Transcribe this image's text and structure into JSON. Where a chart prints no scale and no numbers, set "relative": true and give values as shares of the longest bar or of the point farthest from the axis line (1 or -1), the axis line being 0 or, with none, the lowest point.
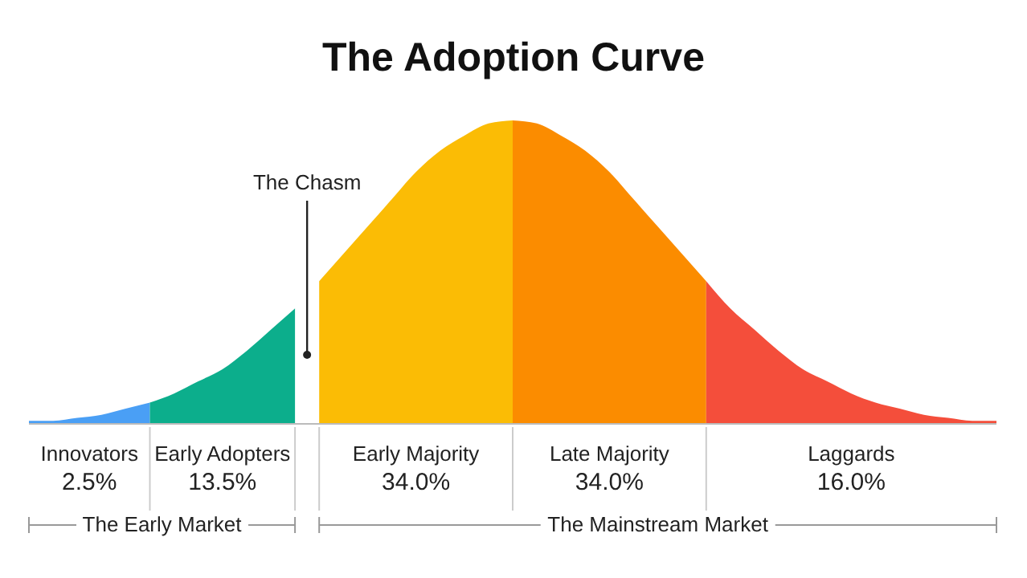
{
  "chart_data": {
    "type": "area",
    "title": "The Adoption Curve",
    "relative": true,
    "tick_labels": false,
    "categories": [
      null,
      null,
      null,
      null,
      null,
      null,
      null,
      null,
      null,
      null,
      null,
      null,
      null,
      null,
      null,
      null,
      null,
      null,
      null,
      null,
      null,
      null,
      null,
      null,
      null,
      null,
      null,
      null,
      null,
      null,
      null,
      null,
      null,
      null,
      null,
      null,
      null,
      null,
      null,
      null,
      null
    ],
    "series": [
      {
        "name": "Innovators",
        "color": "#4a9ff5",
        "values": [
          0.01,
          0.01,
          0.02,
          0.03,
          0.05,
          0.07,
          null,
          null,
          null,
          null,
          null,
          null,
          null,
          null,
          null,
          null,
          null,
          null,
          null,
          null,
          null,
          null,
          null,
          null,
          null,
          null,
          null,
          null,
          null,
          null,
          null,
          null,
          null,
          null,
          null,
          null,
          null,
          null,
          null,
          null,
          null
        ]
      },
      {
        "name": "Early Adopters",
        "color": "#0cae8c",
        "values": [
          null,
          null,
          null,
          null,
          null,
          0.07,
          0.1,
          0.14,
          0.18,
          0.24,
          0.31,
          0.38,
          null,
          null,
          null,
          null,
          null,
          null,
          null,
          null,
          null,
          null,
          null,
          null,
          null,
          null,
          null,
          null,
          null,
          null,
          null,
          null,
          null,
          null,
          null,
          null,
          null,
          null,
          null,
          null,
          null
        ]
      },
      {
        "name": "Early Majority",
        "color": "#fbbc05",
        "values": [
          null,
          null,
          null,
          null,
          null,
          null,
          null,
          null,
          null,
          null,
          null,
          null,
          0.47,
          0.56,
          0.65,
          0.74,
          0.83,
          0.9,
          0.95,
          0.99,
          1,
          null,
          null,
          null,
          null,
          null,
          null,
          null,
          null,
          null,
          null,
          null,
          null,
          null,
          null,
          null,
          null,
          null,
          null,
          null,
          null
        ]
      },
      {
        "name": "Late Majority",
        "color": "#fb8c00",
        "values": [
          null,
          null,
          null,
          null,
          null,
          null,
          null,
          null,
          null,
          null,
          null,
          null,
          null,
          null,
          null,
          null,
          null,
          null,
          null,
          null,
          1,
          0.99,
          0.95,
          0.9,
          0.83,
          0.74,
          0.65,
          0.56,
          0.47,
          null,
          null,
          null,
          null,
          null,
          null,
          null,
          null,
          null,
          null,
          null,
          null
        ]
      },
      {
        "name": "Laggards",
        "color": "#f44e3b",
        "values": [
          null,
          null,
          null,
          null,
          null,
          null,
          null,
          null,
          null,
          null,
          null,
          null,
          null,
          null,
          null,
          null,
          null,
          null,
          null,
          null,
          null,
          null,
          null,
          null,
          null,
          null,
          null,
          null,
          0.47,
          0.38,
          0.31,
          0.24,
          0.18,
          0.14,
          0.1,
          0.07,
          0.05,
          0.03,
          0.02,
          0.01,
          0.01
        ]
      }
    ],
    "annotations": [
      "The Chasm",
      "2.5%",
      "13.5%",
      "34.0%",
      "34.0%",
      "16.0%",
      "The Early Market",
      "The Mainstream Market"
    ]
  }
}
